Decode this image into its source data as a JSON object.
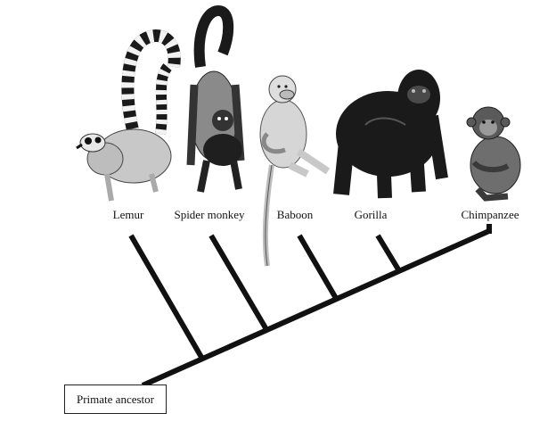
{
  "diagram": {
    "type": "cladogram",
    "root_label": "Primate ancestor",
    "taxa": [
      {
        "id": "lemur",
        "label": "Lemur",
        "icon": "lemur-illustration"
      },
      {
        "id": "spider-monkey",
        "label": "Spider monkey",
        "icon": "spider-monkey-illustration"
      },
      {
        "id": "baboon",
        "label": "Baboon",
        "icon": "baboon-illustration"
      },
      {
        "id": "gorilla",
        "label": "Gorilla",
        "icon": "gorilla-illustration"
      },
      {
        "id": "chimpanzee",
        "label": "Chimpanzee",
        "icon": "chimpanzee-illustration"
      }
    ],
    "colors": {
      "line": "#111111",
      "dark_fur": "#1a1a1a",
      "mid_fur": "#7a7a7a",
      "light_fur": "#c8c8c8"
    }
  }
}
